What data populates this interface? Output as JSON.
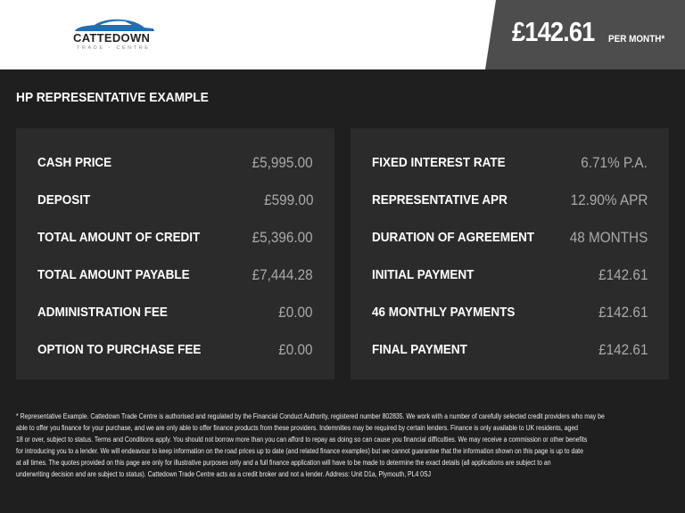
{
  "header": {
    "brand": "CATTEDOWN",
    "brand_sub": "TRADE - CENTRE",
    "price": "£142.61",
    "price_suffix": "PER MONTH*",
    "accent": "#1f6fb5"
  },
  "title": "HP REPRESENTATIVE EXAMPLE",
  "left": [
    {
      "label": "CASH PRICE",
      "value": "£5,995.00"
    },
    {
      "label": "DEPOSIT",
      "value": "£599.00"
    },
    {
      "label": "TOTAL AMOUNT OF CREDIT",
      "value": "£5,396.00"
    },
    {
      "label": "TOTAL AMOUNT PAYABLE",
      "value": "£7,444.28"
    },
    {
      "label": "ADMINISTRATION FEE",
      "value": "£0.00"
    },
    {
      "label": "OPTION TO PURCHASE FEE",
      "value": "£0.00"
    }
  ],
  "right": [
    {
      "label": "FIXED INTEREST RATE",
      "value": "6.71% P.A."
    },
    {
      "label": "REPRESENTATIVE APR",
      "value": "12.90% APR"
    },
    {
      "label": "DURATION OF AGREEMENT",
      "value": "48 MONTHS"
    },
    {
      "label": "INITIAL PAYMENT",
      "value": "£142.61"
    },
    {
      "label": "46 MONTHLY PAYMENTS",
      "value": "£142.61"
    },
    {
      "label": "FINAL PAYMENT",
      "value": "£142.61"
    }
  ],
  "footer": [
    "* Representative Example. Cattedown Trade Centre is authorised and regulated by the Financial Conduct Authority, registered number 802835. We work with a number of carefully selected credit providers who may be",
    "able to offer you finance for your purchase, and we are only able to offer finance products from these providers. Indemnities may be required by certain lenders. Finance is only available to UK residents, aged",
    "18 or over, subject to status. Terms and Conditions apply. You should not borrow more than you can afford to repay as doing so can cause you financial difficulties. We may receive a commission or other benefits",
    "for introducing you to a lender. We will endeavour to keep information on the road prices up to date (and related finance examples) but we cannot guarantee that the information shown on this page is up to date",
    "at all times. The quotes provided on this page are only for illustrative purposes only and a full finance application will have to be made to determine the exact details (all applications are subject to an",
    "underwriting decision and are subject to status). Cattedown Trade Centre acts as a credit broker and not a lender. Address: Unit D1a, Plymouth, PL4 0SJ"
  ]
}
